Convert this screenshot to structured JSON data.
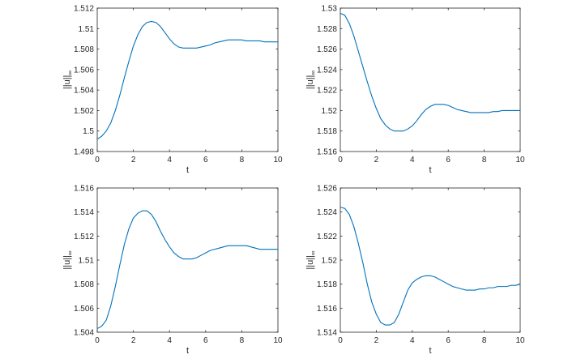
{
  "chart_data": [
    {
      "type": "line",
      "xlabel": "t",
      "ylabel": "||u||",
      "ylabel_sub": "∞",
      "xlim": [
        0,
        10
      ],
      "ylim": [
        1.498,
        1.512
      ],
      "xticks": [
        0,
        2,
        4,
        6,
        8,
        10
      ],
      "xtick_labels": [
        "0",
        "2",
        "4",
        "6",
        "8",
        "10"
      ],
      "yticks": [
        1.498,
        1.5,
        1.502,
        1.504,
        1.506,
        1.508,
        1.51,
        1.512
      ],
      "ytick_labels": [
        "1.498",
        "1.5",
        "1.502",
        "1.504",
        "1.506",
        "1.508",
        "1.51",
        "1.512"
      ],
      "grid": false,
      "series": [
        {
          "color": "#0072bd",
          "x": [
            0,
            0.25,
            0.5,
            0.75,
            1,
            1.25,
            1.5,
            1.75,
            2,
            2.25,
            2.5,
            2.75,
            3,
            3.25,
            3.5,
            3.75,
            4,
            4.25,
            4.5,
            4.75,
            5,
            5.25,
            5.5,
            5.75,
            6,
            6.25,
            6.5,
            6.75,
            7,
            7.25,
            7.5,
            7.75,
            8,
            8.25,
            8.5,
            8.75,
            9,
            9.25,
            9.5,
            9.75,
            10
          ],
          "y": [
            1.4992,
            1.4995,
            1.5,
            1.5008,
            1.502,
            1.5035,
            1.5052,
            1.5068,
            1.5083,
            1.5094,
            1.5102,
            1.5106,
            1.5107,
            1.5106,
            1.5102,
            1.5096,
            1.509,
            1.5085,
            1.5082,
            1.5081,
            1.5081,
            1.5081,
            1.5081,
            1.5082,
            1.5083,
            1.5084,
            1.5086,
            1.5087,
            1.5088,
            1.5089,
            1.5089,
            1.5089,
            1.5089,
            1.5088,
            1.5088,
            1.5088,
            1.5088,
            1.5087,
            1.5087,
            1.5087,
            1.5087
          ]
        }
      ]
    },
    {
      "type": "line",
      "xlabel": "t",
      "ylabel": "||u||",
      "ylabel_sub": "∞",
      "xlim": [
        0,
        10
      ],
      "ylim": [
        1.516,
        1.53
      ],
      "xticks": [
        0,
        2,
        4,
        6,
        8,
        10
      ],
      "xtick_labels": [
        "0",
        "2",
        "4",
        "6",
        "8",
        "10"
      ],
      "yticks": [
        1.516,
        1.518,
        1.52,
        1.522,
        1.524,
        1.526,
        1.528,
        1.53
      ],
      "ytick_labels": [
        "1.516",
        "1.518",
        "1.52",
        "1.522",
        "1.524",
        "1.526",
        "1.528",
        "1.53"
      ],
      "grid": false,
      "series": [
        {
          "color": "#0072bd",
          "x": [
            0,
            0.25,
            0.5,
            0.75,
            1,
            1.25,
            1.5,
            1.75,
            2,
            2.25,
            2.5,
            2.75,
            3,
            3.25,
            3.5,
            3.75,
            4,
            4.25,
            4.5,
            4.75,
            5,
            5.25,
            5.5,
            5.75,
            6,
            6.25,
            6.5,
            6.75,
            7,
            7.25,
            7.5,
            7.75,
            8,
            8.25,
            8.5,
            8.75,
            9,
            9.25,
            9.5,
            9.75,
            10
          ],
          "y": [
            1.5295,
            1.5293,
            1.5285,
            1.5273,
            1.5258,
            1.5243,
            1.5228,
            1.5214,
            1.5202,
            1.5192,
            1.5186,
            1.5182,
            1.518,
            1.518,
            1.518,
            1.5182,
            1.5185,
            1.519,
            1.5196,
            1.5201,
            1.5204,
            1.5206,
            1.5206,
            1.5206,
            1.5205,
            1.5203,
            1.5201,
            1.52,
            1.5199,
            1.5198,
            1.5198,
            1.5198,
            1.5198,
            1.5198,
            1.5199,
            1.5199,
            1.52,
            1.52,
            1.52,
            1.52,
            1.52
          ]
        }
      ]
    },
    {
      "type": "line",
      "xlabel": "t",
      "ylabel": "||u||",
      "ylabel_sub": "∞",
      "xlim": [
        0,
        10
      ],
      "ylim": [
        1.504,
        1.516
      ],
      "xticks": [
        0,
        2,
        4,
        6,
        8,
        10
      ],
      "xtick_labels": [
        "0",
        "2",
        "4",
        "6",
        "8",
        "10"
      ],
      "yticks": [
        1.504,
        1.506,
        1.508,
        1.51,
        1.512,
        1.514,
        1.516
      ],
      "ytick_labels": [
        "1.504",
        "1.506",
        "1.508",
        "1.51",
        "1.512",
        "1.514",
        "1.516"
      ],
      "grid": false,
      "series": [
        {
          "color": "#0072bd",
          "x": [
            0,
            0.25,
            0.5,
            0.75,
            1,
            1.25,
            1.5,
            1.75,
            2,
            2.25,
            2.5,
            2.75,
            3,
            3.25,
            3.5,
            3.75,
            4,
            4.25,
            4.5,
            4.75,
            5,
            5.25,
            5.5,
            5.75,
            6,
            6.25,
            6.5,
            6.75,
            7,
            7.25,
            7.5,
            7.75,
            8,
            8.25,
            8.5,
            8.75,
            9,
            9.25,
            9.5,
            9.75,
            10
          ],
          "y": [
            1.5043,
            1.5045,
            1.505,
            1.5062,
            1.5078,
            1.5096,
            1.5113,
            1.5126,
            1.5135,
            1.5139,
            1.5141,
            1.5141,
            1.5138,
            1.5132,
            1.5124,
            1.5117,
            1.5111,
            1.5106,
            1.5103,
            1.5101,
            1.5101,
            1.5101,
            1.5102,
            1.5104,
            1.5106,
            1.5108,
            1.5109,
            1.511,
            1.5111,
            1.5112,
            1.5112,
            1.5112,
            1.5112,
            1.5112,
            1.5111,
            1.511,
            1.5109,
            1.5109,
            1.5109,
            1.5109,
            1.5109
          ]
        }
      ]
    },
    {
      "type": "line",
      "xlabel": "t",
      "ylabel": "||u||",
      "ylabel_sub": "∞",
      "xlim": [
        0,
        10
      ],
      "ylim": [
        1.514,
        1.526
      ],
      "xticks": [
        0,
        2,
        4,
        6,
        8,
        10
      ],
      "xtick_labels": [
        "0",
        "2",
        "4",
        "6",
        "8",
        "10"
      ],
      "yticks": [
        1.514,
        1.516,
        1.518,
        1.52,
        1.522,
        1.524,
        1.526
      ],
      "ytick_labels": [
        "1.514",
        "1.516",
        "1.518",
        "1.52",
        "1.522",
        "1.524",
        "1.526"
      ],
      "grid": false,
      "series": [
        {
          "color": "#0072bd",
          "x": [
            0,
            0.25,
            0.5,
            0.75,
            1,
            1.25,
            1.5,
            1.75,
            2,
            2.25,
            2.5,
            2.75,
            3,
            3.25,
            3.5,
            3.75,
            4,
            4.25,
            4.5,
            4.75,
            5,
            5.25,
            5.5,
            5.75,
            6,
            6.25,
            6.5,
            6.75,
            7,
            7.25,
            7.5,
            7.75,
            8,
            8.25,
            8.5,
            8.75,
            9,
            9.25,
            9.5,
            9.75,
            10
          ],
          "y": [
            1.5244,
            1.5243,
            1.5238,
            1.5228,
            1.5214,
            1.5198,
            1.518,
            1.5165,
            1.5155,
            1.5148,
            1.5146,
            1.5146,
            1.5148,
            1.5155,
            1.5165,
            1.5175,
            1.5181,
            1.5184,
            1.5186,
            1.5187,
            1.5187,
            1.5186,
            1.5184,
            1.5182,
            1.518,
            1.5178,
            1.5177,
            1.5176,
            1.5175,
            1.5175,
            1.5175,
            1.5176,
            1.5176,
            1.5177,
            1.5177,
            1.5178,
            1.5178,
            1.5178,
            1.5179,
            1.5179,
            1.518
          ]
        }
      ]
    }
  ]
}
